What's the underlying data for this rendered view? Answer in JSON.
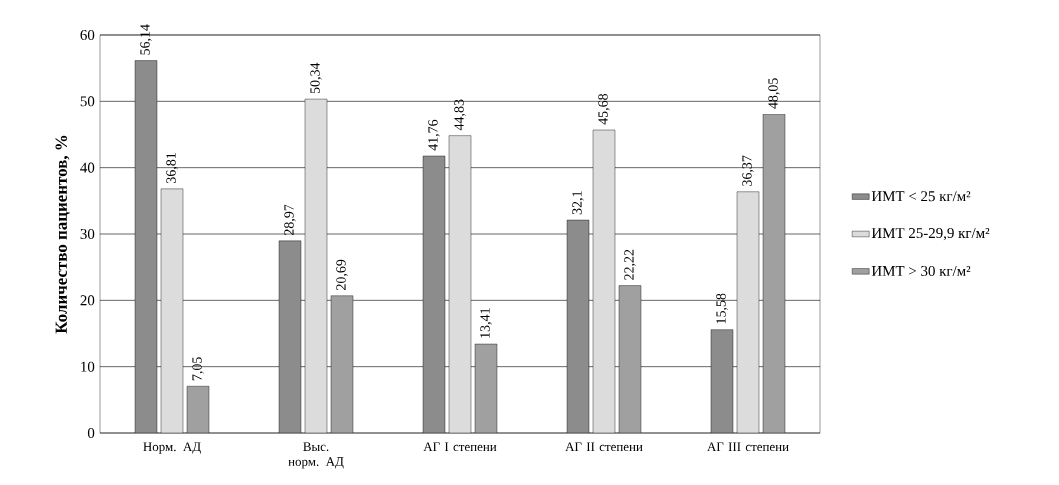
{
  "chart_data": {
    "type": "bar",
    "ylabel": "**Количество пациентов, %**",
    "categories": [
      "Норм. АД",
      "Выс. норм. АД",
      "АГ I степени",
      "АГ II степени",
      "АГ III степени"
    ],
    "series": [
      {
        "name": "ИМТ < 25 кг/м²",
        "color": "#8c8c8c",
        "values": [
          56.14,
          28.97,
          41.76,
          32.1,
          15.58
        ],
        "value_labels": [
          "56,14",
          "28,97",
          "41,76",
          "32,1",
          "15,58"
        ]
      },
      {
        "name": "ИМТ 25-29,9 кг/м²",
        "color": "#dcdcdc",
        "values": [
          36.81,
          50.34,
          44.83,
          45.68,
          36.37
        ],
        "value_labels": [
          "36,81",
          "50,34",
          "44,83",
          "45,68",
          "36,37"
        ]
      },
      {
        "name": "ИМТ > 30 кг/м²",
        "color": "#a0a0a0",
        "values": [
          7.05,
          20.69,
          13.41,
          22.22,
          48.05
        ],
        "value_labels": [
          "7,05",
          "20,69",
          "13,41",
          "22,22",
          "48,05"
        ]
      }
    ],
    "ylim": [
      0,
      60
    ],
    "yticks": [
      0,
      10,
      20,
      30,
      40,
      50,
      60
    ],
    "grid": "y",
    "legend": "right"
  }
}
